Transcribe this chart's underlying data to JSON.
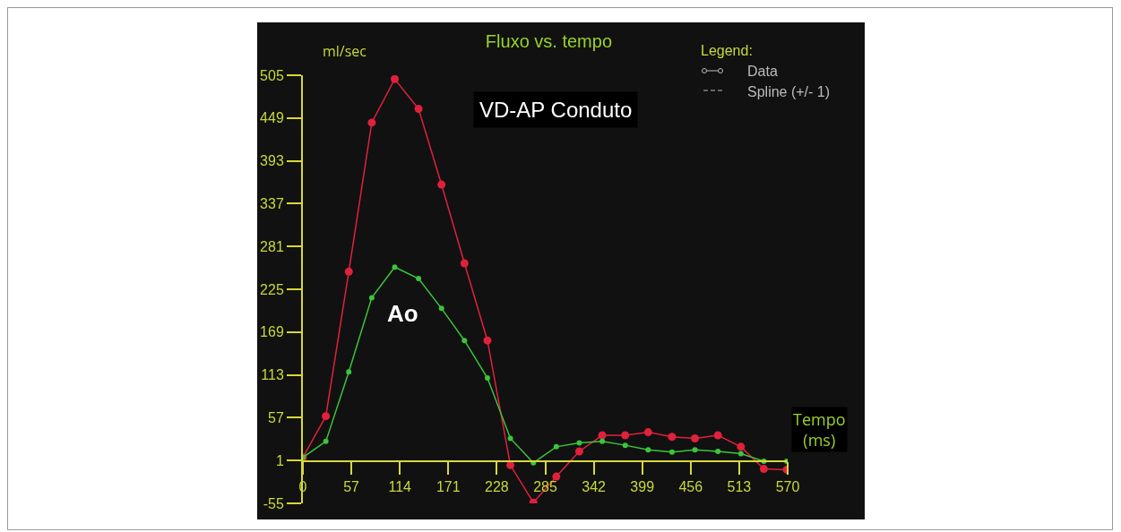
{
  "chart_data": {
    "type": "line",
    "title": "Fluxo vs. tempo",
    "xlabel": "Tempo (ms)",
    "ylabel": "ml/sec",
    "x": [
      0,
      27,
      54,
      81,
      108,
      136,
      163,
      190,
      217,
      244,
      271,
      298,
      325,
      352,
      379,
      406,
      434,
      461,
      488,
      515,
      542,
      569
    ],
    "series": [
      {
        "name": "VD-AP Conduto",
        "color": "#e0213c",
        "values": [
          5,
          59,
          248,
          443,
          500,
          461,
          362,
          259,
          158,
          -5,
          -54,
          -20,
          13,
          34,
          34,
          38,
          32,
          30,
          34,
          19,
          -10,
          -11
        ]
      },
      {
        "name": "Ao",
        "color": "#3cc43c",
        "values": [
          5,
          26,
          117,
          214,
          254,
          239,
          200,
          158,
          109,
          30,
          -2,
          19,
          24,
          26,
          21,
          15,
          12,
          15,
          13,
          10,
          0,
          0
        ]
      }
    ],
    "xlim": [
      0,
      570
    ],
    "xticks": [
      0,
      57,
      114,
      171,
      228,
      285,
      342,
      399,
      456,
      513,
      570
    ],
    "ylim": [
      -55,
      505
    ],
    "yticks": [
      -55,
      1,
      57,
      113,
      169,
      225,
      281,
      337,
      393,
      449,
      505
    ],
    "legend": false,
    "marker": "circle",
    "line_style": "solid",
    "annotations": [
      "Legend:",
      "Data",
      "Spline (+/- 1)"
    ]
  }
}
